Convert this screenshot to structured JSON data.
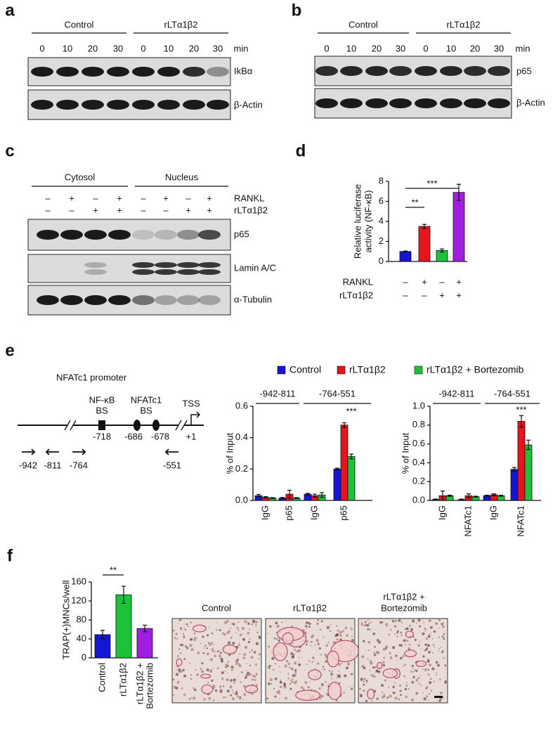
{
  "panel_labels": [
    "a",
    "b",
    "c",
    "d",
    "e",
    "f"
  ],
  "blot_a": {
    "groups": [
      "Control",
      "rLTα1β2"
    ],
    "times": [
      "0",
      "10",
      "20",
      "30",
      "0",
      "10",
      "20",
      "30"
    ],
    "unit": "min",
    "bands": [
      "IkBα",
      "β-Actin"
    ]
  },
  "blot_b": {
    "groups": [
      "Control",
      "rLTα1β2"
    ],
    "times": [
      "0",
      "10",
      "20",
      "30",
      "0",
      "10",
      "20",
      "30"
    ],
    "unit": "min",
    "bands": [
      "p65",
      "β-Actin"
    ]
  },
  "blot_c": {
    "groups": [
      "Cytosol",
      "Nucleus"
    ],
    "rows": [
      {
        "name": "RANKL",
        "signs": [
          "–",
          "+",
          "–",
          "+",
          "–",
          "+",
          "–",
          "+"
        ]
      },
      {
        "name": "rLTα1β2",
        "signs": [
          "–",
          "–",
          "+",
          "+",
          "–",
          "–",
          "+",
          "+"
        ]
      }
    ],
    "bands": [
      "p65",
      "Lamin A/C",
      "α-Tubulin"
    ]
  },
  "promoter": {
    "title": "NFATc1 promoter",
    "nfkb_bs": [
      "NF-κB",
      "BS"
    ],
    "nfatc1_bs": [
      "NFATc1",
      "BS"
    ],
    "tss": "TSS",
    "positions": [
      "-718",
      "-686",
      "-678",
      "+1"
    ],
    "primers": [
      "-942",
      "-811",
      "-764",
      "-551"
    ]
  },
  "legend": {
    "names": [
      "Control",
      "rLTα1β2",
      "rLTα1β2 + Bortezomib"
    ],
    "colors": [
      "#1515d8",
      "#e8141c",
      "#1cc23a"
    ]
  },
  "images": {
    "captions": [
      "Control",
      "rLTα1β2",
      [
        "rLTα1β2 +",
        "Bortezomib"
      ]
    ]
  },
  "chart_data": [
    {
      "type": "bar",
      "ylabel": [
        "Relative luciferase",
        "activity (NF-κB)"
      ],
      "categories": [
        null,
        null,
        null,
        null
      ],
      "values": [
        1.0,
        3.5,
        1.1,
        6.9
      ],
      "errors": [
        0.05,
        0.2,
        0.15,
        0.8
      ],
      "colors": [
        "#1515d8",
        "#e8141c",
        "#1cc23a",
        "#a01ee0"
      ],
      "ylim": [
        0,
        8
      ],
      "yticks": [
        0,
        2,
        4,
        6,
        8
      ],
      "x_rows": [
        {
          "name": "RANKL",
          "signs": [
            "–",
            "+",
            "–",
            "+"
          ]
        },
        {
          "name": "rLTα1β2",
          "signs": [
            "–",
            "–",
            "+",
            "+"
          ]
        }
      ],
      "annotations": [
        "**",
        "***"
      ]
    },
    {
      "type": "grouped_bar",
      "ylabel": "% of Input",
      "categories": [
        "IgG",
        "p65",
        "IgG",
        "p65"
      ],
      "groups": [
        "-942-811",
        "-764-551"
      ],
      "series": [
        {
          "color": "#1515d8",
          "values": [
            0.03,
            0.015,
            0.04,
            0.2
          ],
          "errors": [
            0.008,
            0.004,
            0.005,
            0.006
          ]
        },
        {
          "color": "#e8141c",
          "values": [
            0.02,
            0.04,
            0.03,
            0.48
          ],
          "errors": [
            0.004,
            0.025,
            0.01,
            0.015
          ]
        },
        {
          "color": "#1cc23a",
          "values": [
            0.015,
            0.015,
            0.035,
            0.28
          ],
          "errors": [
            0.003,
            0.003,
            0.015,
            0.015
          ]
        }
      ],
      "ylim": [
        0,
        0.6
      ],
      "yticks": [
        {
          "value": 0,
          "label": "0.0"
        },
        0.2,
        0.4,
        0.6
      ],
      "annotations": [
        "***"
      ]
    },
    {
      "type": "grouped_bar",
      "ylabel": "% of Input",
      "categories": [
        "IgG",
        "NFATc1",
        "IgG",
        "NFATc1"
      ],
      "groups": [
        "-942-811",
        "-764-551"
      ],
      "series": [
        {
          "color": "#1515d8",
          "values": [
            0.01,
            0.01,
            0.05,
            0.33
          ],
          "errors": [
            0.005,
            0.004,
            0.006,
            0.02
          ]
        },
        {
          "color": "#e8141c",
          "values": [
            0.05,
            0.05,
            0.06,
            0.84
          ],
          "errors": [
            0.05,
            0.02,
            0.01,
            0.06
          ]
        },
        {
          "color": "#1cc23a",
          "values": [
            0.05,
            0.04,
            0.05,
            0.59
          ],
          "errors": [
            0.006,
            0.005,
            0.005,
            0.05
          ]
        }
      ],
      "ylim": [
        0,
        1.0
      ],
      "yticks": [
        {
          "value": 0,
          "label": "0.0"
        },
        0.2,
        0.4,
        0.6,
        0.8,
        {
          "value": 1.0,
          "label": "1.0"
        }
      ],
      "annotations": [
        "***"
      ]
    },
    {
      "type": "bar",
      "ylabel": "TRAP(+)MNCs/well",
      "categories": [
        "Control",
        "rLTα1β2",
        [
          "rLTα1β2 +",
          "Bortezomib"
        ]
      ],
      "values": [
        49,
        133,
        62
      ],
      "errors": [
        9,
        18,
        7
      ],
      "colors": [
        "#1515d8",
        "#1cc23a",
        "#a01ee0"
      ],
      "ylim": [
        0,
        160
      ],
      "yticks": [
        0,
        40,
        80,
        120,
        160
      ],
      "annotations": [
        "**"
      ]
    }
  ]
}
